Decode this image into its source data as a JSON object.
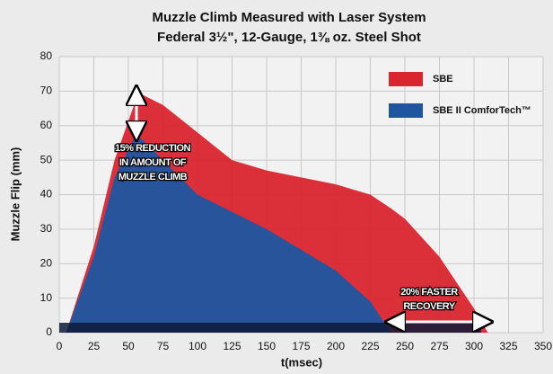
{
  "chart_data": {
    "type": "area",
    "title": [
      "Muzzle Climb Measured with Laser System",
      "Federal 3½\", 12-Gauge, 1⅜ oz. Steel Shot"
    ],
    "xlabel": "t(msec)",
    "ylabel": "Muzzle Flip (mm)",
    "x": [
      5,
      25,
      40,
      55,
      60,
      75,
      100,
      125,
      150,
      175,
      200,
      225,
      240,
      250,
      275,
      300,
      310
    ],
    "series": [
      {
        "name": "SBE",
        "color": "#d9252e",
        "values": [
          0,
          25,
          50,
          67,
          69,
          66,
          58,
          50,
          47,
          45,
          43,
          40,
          36,
          33,
          22,
          7,
          0
        ]
      },
      {
        "name": "SBE II ComforTech™",
        "color": "#1f56a0",
        "values": [
          0,
          22,
          45,
          57,
          56,
          50,
          40,
          35,
          30,
          24,
          18,
          9,
          0,
          null,
          null,
          null,
          null
        ]
      }
    ],
    "xlim": [
      0,
      350
    ],
    "xticks": [
      0,
      25,
      50,
      75,
      100,
      125,
      150,
      175,
      200,
      225,
      250,
      275,
      300,
      325,
      350
    ],
    "ylim": [
      0,
      80
    ],
    "yticks": [
      0,
      10,
      20,
      30,
      40,
      50,
      60,
      70,
      80
    ],
    "grid": true,
    "legend": "upper right",
    "annotations": [
      [
        "15% REDUCTION",
        "IN AMOUNT OF",
        "MUZZLE CLIMB"
      ],
      [
        "20% FASTER",
        "RECOVERY"
      ]
    ]
  }
}
